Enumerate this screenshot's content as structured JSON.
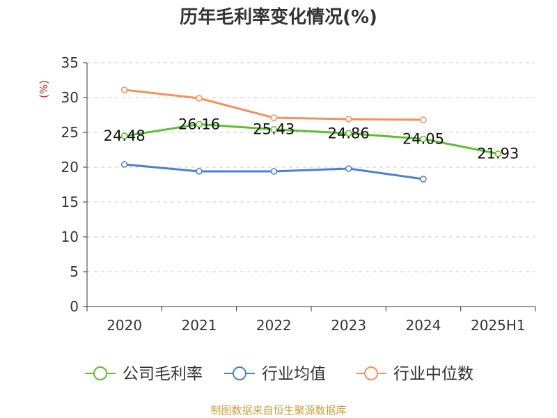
{
  "chart_data": {
    "type": "line",
    "title": "历年毛利率变化情况(%)",
    "ylabel": "(%)",
    "xlabel": "",
    "categories": [
      "2020",
      "2021",
      "2022",
      "2023",
      "2024",
      "2025H1"
    ],
    "ylim": [
      0,
      35
    ],
    "yticks": [
      0,
      5,
      10,
      15,
      20,
      25,
      30,
      35
    ],
    "grid": true,
    "legend_position": "bottom",
    "series": [
      {
        "name": "公司毛利率",
        "color": "#5bc02a",
        "values": [
          24.48,
          26.16,
          25.43,
          24.86,
          24.05,
          21.93
        ],
        "labels": [
          "24.48",
          "26.16",
          "25.43",
          "24.86",
          "24.05",
          "21.93"
        ]
      },
      {
        "name": "行业均值",
        "color": "#4a7fd6",
        "values": [
          20.4,
          19.4,
          19.4,
          19.8,
          18.3,
          null
        ]
      },
      {
        "name": "行业中位数",
        "color": "#f5915a",
        "values": [
          31.1,
          29.9,
          27.1,
          26.9,
          26.8,
          null
        ]
      }
    ]
  },
  "footer": "制图数据来自恒生聚源数据库"
}
